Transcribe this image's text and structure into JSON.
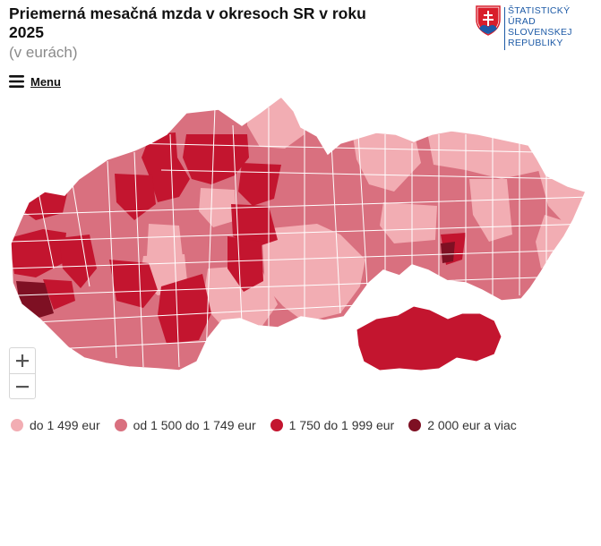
{
  "header": {
    "title": "Priemerná mesačná mzda v okresoch SR v roku 2025",
    "subtitle": "(v eurách)"
  },
  "logo": {
    "line1": "ŠTATISTICKÝ",
    "line2": "ÚRAD",
    "line3": "SLOVENSKEJ",
    "line4": "REPUBLIKY",
    "icon": "slovak-coat-of-arms"
  },
  "menu": {
    "label": "Menu",
    "icon": "hamburger-icon"
  },
  "zoom": {
    "in_icon": "plus-icon",
    "out_icon": "minus-icon"
  },
  "legend": {
    "items": [
      {
        "label": "do 1 499 eur",
        "color": "#f2adb3"
      },
      {
        "label": "od 1 500 do 1 749 eur",
        "color": "#d9707f"
      },
      {
        "label": "1 750 do 1 999 eur",
        "color": "#c3152f"
      },
      {
        "label": "2 000 eur a viac",
        "color": "#7e1023"
      }
    ]
  },
  "colors": {
    "border": "#ffffff",
    "accent": "#1d5aa6"
  }
}
